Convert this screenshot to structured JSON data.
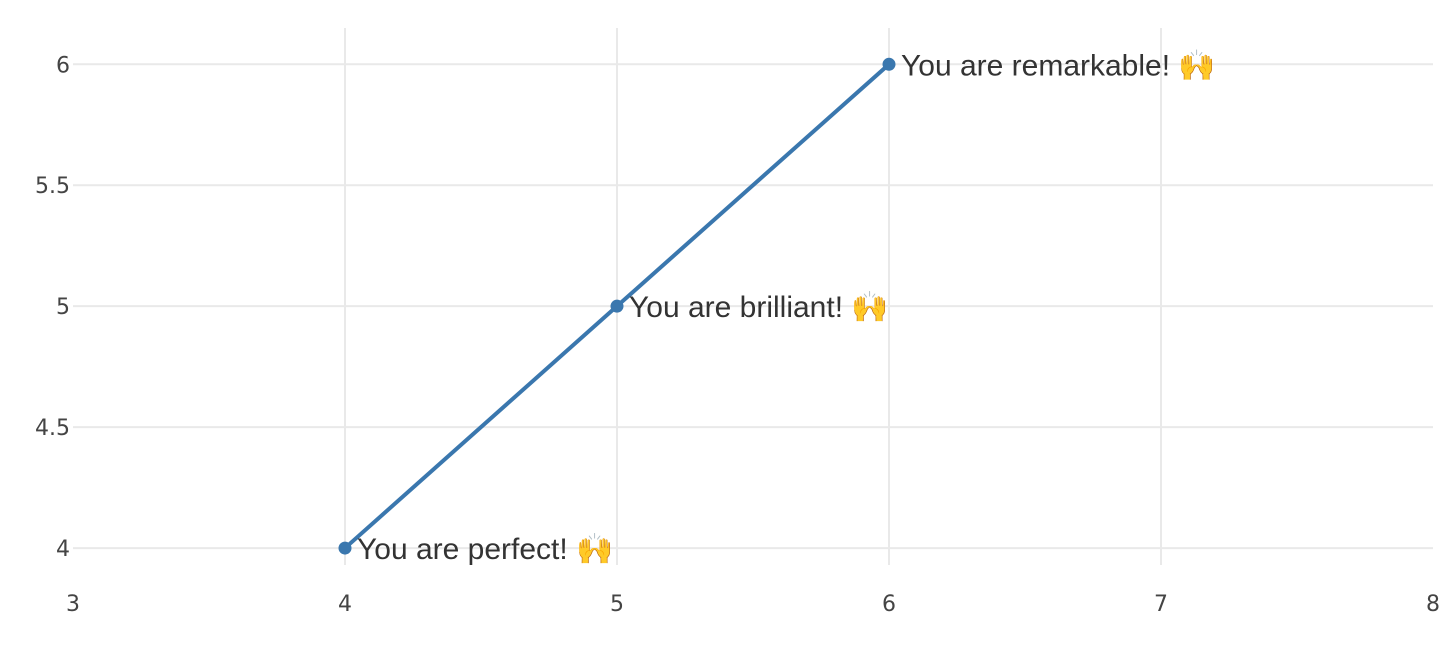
{
  "chart_data": {
    "type": "line",
    "title": "",
    "xlabel": "",
    "ylabel": "",
    "xlim": [
      3,
      8
    ],
    "ylim": [
      3.93,
      6.15
    ],
    "x_ticks": [
      3,
      4,
      5,
      6,
      7,
      8
    ],
    "x_tick_labels": [
      "3",
      "4",
      "5",
      "6",
      "7",
      "8"
    ],
    "y_ticks": [
      4,
      4.5,
      5,
      5.5,
      6
    ],
    "y_tick_labels": [
      "4",
      "4.5",
      "5",
      "5.5",
      "6"
    ],
    "grid": true,
    "legend": "none",
    "series": [
      {
        "color": "#3a77ae",
        "x": [
          4,
          5,
          6
        ],
        "y": [
          4,
          5,
          6
        ],
        "labels": [
          "You are perfect! 🙌",
          "You are brilliant! 🙌",
          "You are remarkable! 🙌"
        ]
      }
    ]
  }
}
